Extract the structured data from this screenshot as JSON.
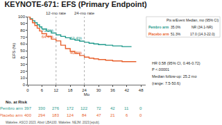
{
  "chart_data": {
    "type": "line",
    "line_style": "step",
    "title": "KEYNOTE-671: EFS (Primary Endpoint)",
    "x_label": "Mo",
    "y_label": "EFS (%)",
    "xlim": [
      0,
      50
    ],
    "xticks": [
      0,
      6,
      12,
      18,
      24,
      30,
      36,
      42,
      48
    ],
    "ylim": [
      0,
      100
    ],
    "yticks": [
      0,
      10,
      20,
      30,
      40,
      50,
      60,
      70,
      80,
      90,
      100
    ],
    "grid": false,
    "series": [
      {
        "name": "Pembro arm",
        "color": "#1f9a8c",
        "x": [
          0,
          1,
          2,
          3,
          4,
          5,
          6,
          8,
          10,
          12,
          14,
          16,
          18,
          20,
          22,
          24,
          26,
          28,
          30,
          33,
          36,
          40,
          44
        ],
        "values": [
          100,
          97,
          94,
          91,
          88,
          85,
          82,
          79,
          76,
          73.2,
          71,
          69,
          67,
          65.5,
          64,
          62.4,
          61,
          60,
          59,
          58,
          57,
          56,
          56
        ],
        "at_risk": [
          397,
          330,
          276,
          172,
          122,
          72,
          42,
          11,
          0
        ]
      },
      {
        "name": "Placebo arm",
        "color": "#e8602c",
        "x": [
          0,
          1,
          2,
          3,
          4,
          5,
          6,
          8,
          10,
          12,
          14,
          16,
          18,
          20,
          22,
          24,
          26,
          28,
          30,
          33,
          36,
          40,
          46
        ],
        "values": [
          100,
          96,
          91,
          87,
          83,
          79,
          75,
          71,
          67,
          64.4,
          58,
          53,
          49,
          46,
          43,
          40.6,
          39,
          38,
          37,
          36,
          35,
          34,
          34
        ],
        "at_risk": [
          400,
          294,
          183,
          124,
          84,
          47,
          21,
          6,
          0
        ]
      }
    ],
    "rates": [
      {
        "label": "12-mo rate",
        "x": 12,
        "values": [
          73.2,
          64.4
        ],
        "value_labels": [
          "73.2%",
          "64.4%"
        ]
      },
      {
        "label": "24-mo rate",
        "x": 24,
        "values": [
          62.4,
          40.6
        ],
        "value_labels": [
          "62.4%",
          "40.6%"
        ]
      }
    ],
    "risk_label": "No. at Risk",
    "table": {
      "header": [
        "Pts w/Event",
        "Median, mo (95% CI)"
      ],
      "rows": [
        [
          "Pembro arm",
          "35.0%",
          "NR (34.1-NR)"
        ],
        [
          "Placebo arm",
          "51.3%",
          "17.0 (14.3-22.0)"
        ]
      ]
    },
    "stats": [
      "HR 0.58 (95% CI, 0.46-0.72)",
      "P <.00001",
      "Median follow-up: 25.2 mo",
      "(range: 7.5-50.6)"
    ],
    "source": "Wakelee. ASCO 2023. Abstr LBA100. Wakelee. NEJM. 2023;[epub]."
  }
}
